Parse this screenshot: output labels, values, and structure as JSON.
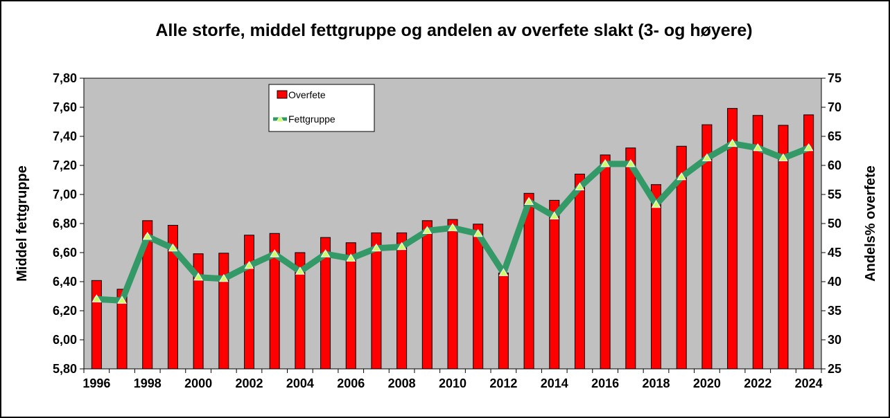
{
  "chart_data": {
    "type": "bar+line",
    "title": "Alle storfe, middel fettgruppe og andelen av overfete slakt (3- og høyere)",
    "ylabel": "Middel fettgruppe",
    "y2label": "Andels% overfete",
    "ylim": [
      5.8,
      7.8
    ],
    "y2lim": [
      25,
      75
    ],
    "yticks": [
      "5,80",
      "6,00",
      "6,20",
      "6,40",
      "6,60",
      "6,80",
      "7,00",
      "7,20",
      "7,40",
      "7,60",
      "7,80"
    ],
    "y2ticks": [
      "25",
      "30",
      "35",
      "40",
      "45",
      "50",
      "55",
      "60",
      "65",
      "70",
      "75"
    ],
    "xtick_labels": [
      "1996",
      "1998",
      "2000",
      "2002",
      "2004",
      "2006",
      "2008",
      "2010",
      "2012",
      "2014",
      "2016",
      "2018",
      "2020",
      "2022",
      "2024"
    ],
    "legend_position": "top-left",
    "grid": false,
    "x": [
      1996,
      1997,
      1998,
      1999,
      2000,
      2001,
      2002,
      2003,
      2004,
      2005,
      2006,
      2007,
      2008,
      2009,
      2010,
      2011,
      2012,
      2013,
      2014,
      2015,
      2016,
      2017,
      2018,
      2019,
      2020,
      2021,
      2022,
      2023,
      2024
    ],
    "series": [
      {
        "name": "Overfete",
        "type": "bar",
        "axis": "right",
        "color": "#ff0000",
        "values": [
          40.2,
          38.7,
          50.5,
          49.7,
          44.8,
          44.9,
          48.0,
          48.3,
          45.0,
          47.6,
          46.7,
          48.4,
          48.4,
          50.5,
          50.7,
          49.9,
          41.5,
          55.2,
          54.0,
          58.5,
          61.8,
          63.0,
          56.7,
          63.3,
          67.0,
          69.8,
          68.6,
          66.9,
          68.7
        ]
      },
      {
        "name": "Fettgruppe",
        "type": "line",
        "axis": "left",
        "color": "#339966",
        "marker_color": "#ccff66",
        "values": [
          6.28,
          6.27,
          6.71,
          6.63,
          6.43,
          6.42,
          6.51,
          6.59,
          6.47,
          6.59,
          6.56,
          6.63,
          6.64,
          6.75,
          6.77,
          6.73,
          6.46,
          6.95,
          6.85,
          7.05,
          7.21,
          7.21,
          6.93,
          7.12,
          7.25,
          7.35,
          7.32,
          7.25,
          7.32
        ]
      }
    ]
  }
}
